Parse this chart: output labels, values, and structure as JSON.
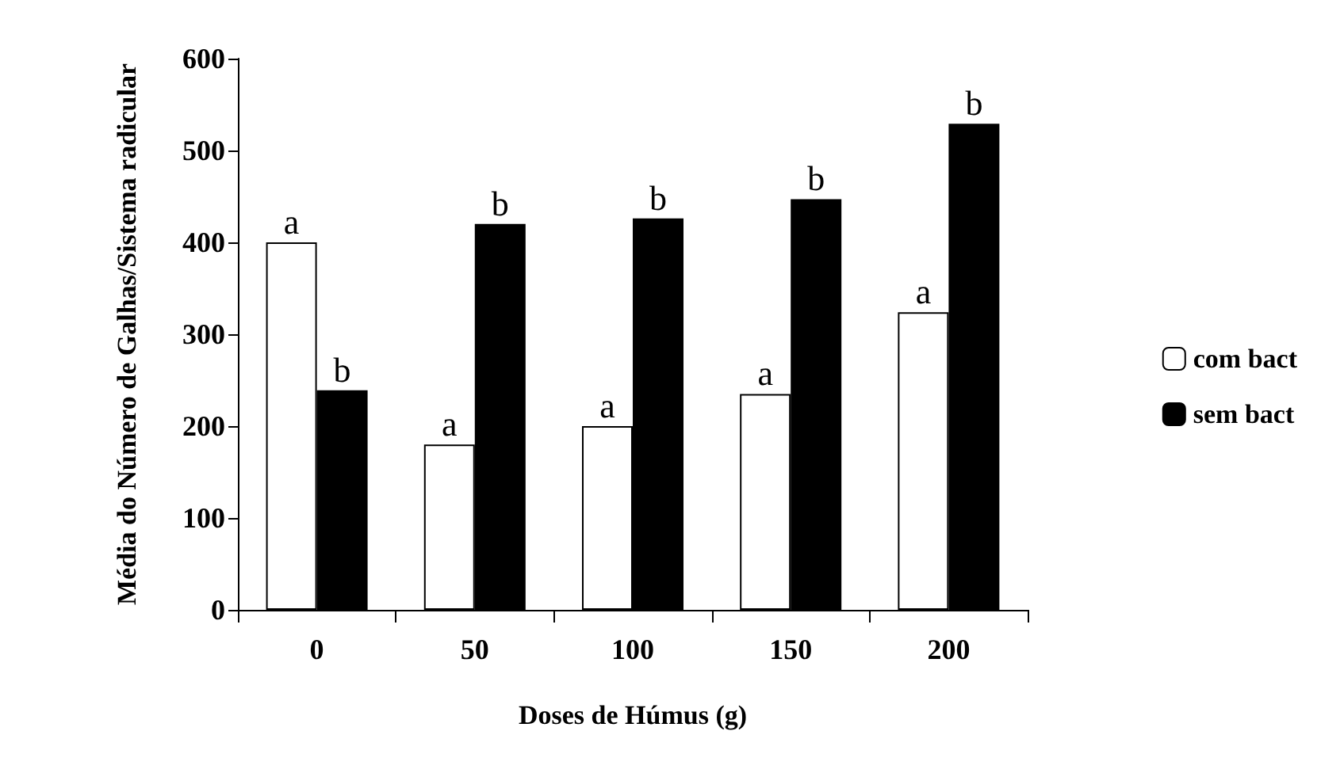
{
  "chart_data": {
    "type": "bar",
    "xlabel": "Doses de Húmus (g)",
    "ylabel": "Média do Número de Galhas/Sistema radicular",
    "categories": [
      "0",
      "50",
      "100",
      "150",
      "200"
    ],
    "series": [
      {
        "name": "com bact",
        "color": "#ffffff",
        "values": [
          400,
          180,
          200,
          235,
          324
        ],
        "value_labels": [
          "a",
          "a",
          "a",
          "a",
          "a"
        ]
      },
      {
        "name": "sem bact",
        "color": "#000000",
        "values": [
          239,
          420,
          426,
          447,
          529
        ],
        "value_labels": [
          "b",
          "b",
          "b",
          "b",
          "b"
        ]
      }
    ],
    "ylim": [
      0,
      600
    ],
    "yticks": [
      0,
      100,
      200,
      300,
      400,
      500,
      600
    ],
    "grid": false,
    "legend": "right"
  }
}
